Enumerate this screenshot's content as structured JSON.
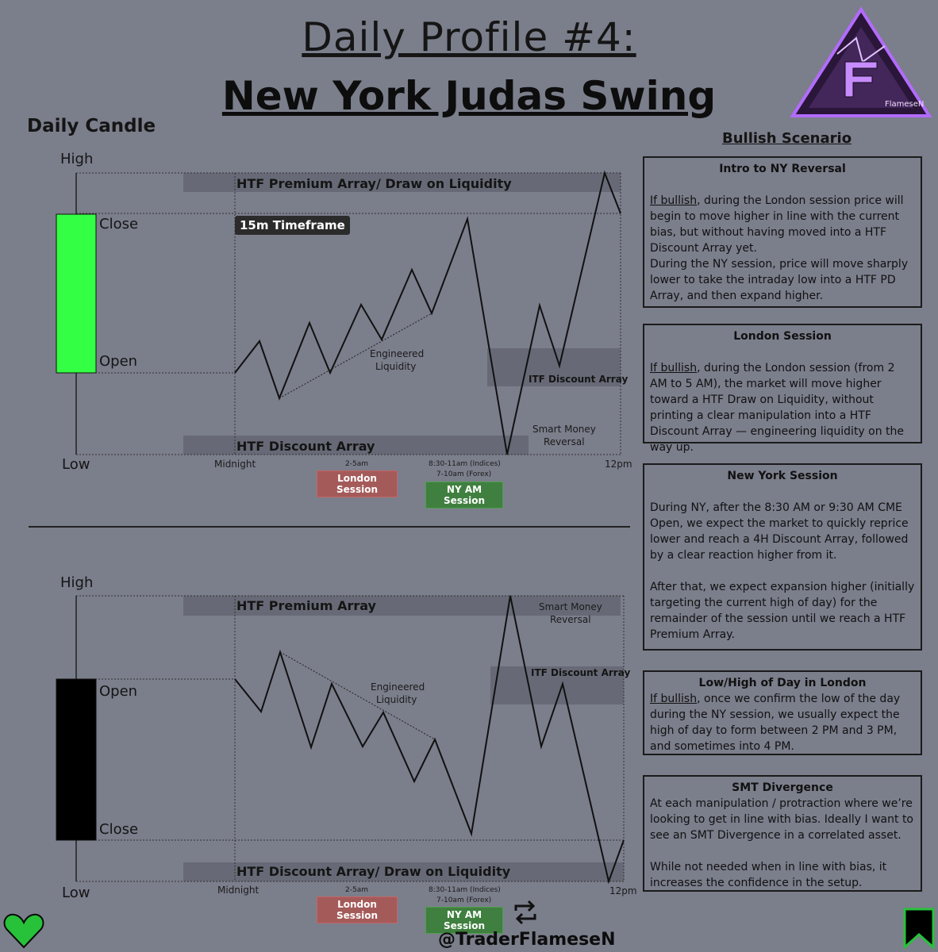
{
  "title": {
    "line1": "Daily Profile #4:",
    "line2": "New York Judas Swing"
  },
  "logo": {
    "text": "FlameseN"
  },
  "daily_candle_label": "Daily Candle",
  "chart_top": {
    "high_label": "High",
    "low_label": "Low",
    "close_label": "Close",
    "open_label": "Open",
    "candle_color": "#33ff44",
    "premium_zone": "HTF Premium Array/ Draw on Liquidity",
    "discount_zone": "HTF Discount Array",
    "itf_zone": "ITF Discount Array",
    "timeframe_badge": "15m Timeframe",
    "engineered_liquidity": [
      "Engineered",
      "Liquidity"
    ],
    "smart_money": [
      "Smart Money",
      "Reversal"
    ],
    "x_midnight": "Midnight",
    "x_12pm": "12pm",
    "london_time": "2-5am",
    "london_session": "London Session",
    "ny_time_1": "8:30-11am (Indices)",
    "ny_time_2": "7-10am (Forex)",
    "ny_session": "NY AM Session"
  },
  "chart_bottom": {
    "high_label": "High",
    "low_label": "Low",
    "open_label": "Open",
    "close_label": "Close",
    "candle_color": "#000000",
    "premium_zone": "HTF Premium Array",
    "discount_zone": "HTF Discount Array/ Draw on Liquidity",
    "itf_zone": "ITF Discount Array",
    "engineered_liquidity": [
      "Engineered",
      "Liquidity"
    ],
    "smart_money": [
      "Smart Money",
      "Reversal"
    ],
    "x_midnight": "Midnight",
    "x_12pm": "12pm",
    "london_time": "2-5am",
    "london_session": "London Session",
    "ny_time_1": "8:30-11am (Indices)",
    "ny_time_2": "7-10am (Forex)",
    "ny_session": "NY AM Session"
  },
  "scenario": {
    "title": "Bullish Scenario",
    "boxes": [
      {
        "heading": "Intro to NY Reversal",
        "lead": "If bullish",
        "p1": ", during the London session price will begin to move higher in line with the current bias, but without having moved into a HTF Discount Array yet.",
        "p2": "During the NY session, price will move sharply lower to take the intraday low into a HTF PD Array, and then expand higher."
      },
      {
        "heading": "London Session",
        "lead": "If bullish",
        "p1": ", during the London session (from 2 AM to 5 AM), the market will move higher toward a HTF Draw on Liquidity, without printing a clear manipulation into a HTF Discount Array — engineering liquidity on the way up."
      },
      {
        "heading": "New York Session",
        "p1": "During NY, after the 8:30 AM or 9:30 AM CME Open, we expect the market to quickly reprice lower and reach a 4H Discount Array, followed by a clear reaction higher from it.",
        "p2": "After that, we expect expansion higher (initially targeting the current high of day) for the remainder of the session until we reach a HTF Premium Array."
      },
      {
        "heading": "Low/High of Day in London",
        "lead": "If bullish",
        "p1": ", once we confirm the low of the day during the NY session, we usually expect the high of day to form between 2 PM and 3 PM, and sometimes into 4 PM."
      },
      {
        "heading": "SMT Divergence",
        "p1": "At each manipulation / protraction where we’re looking to get in line with bias. Ideally I want to see an SMT Divergence in a correlated asset.",
        "p2": "While not needed when in line with bias, it increases the confidence in the setup."
      }
    ]
  },
  "handle": "@TraderFlameseN",
  "icons": {
    "heart": "heart-icon",
    "retweet": "retweet-icon",
    "bookmark": "bookmark-icon"
  },
  "colors": {
    "heart": "#27c23a",
    "bookmark_border": "#27c23a"
  }
}
